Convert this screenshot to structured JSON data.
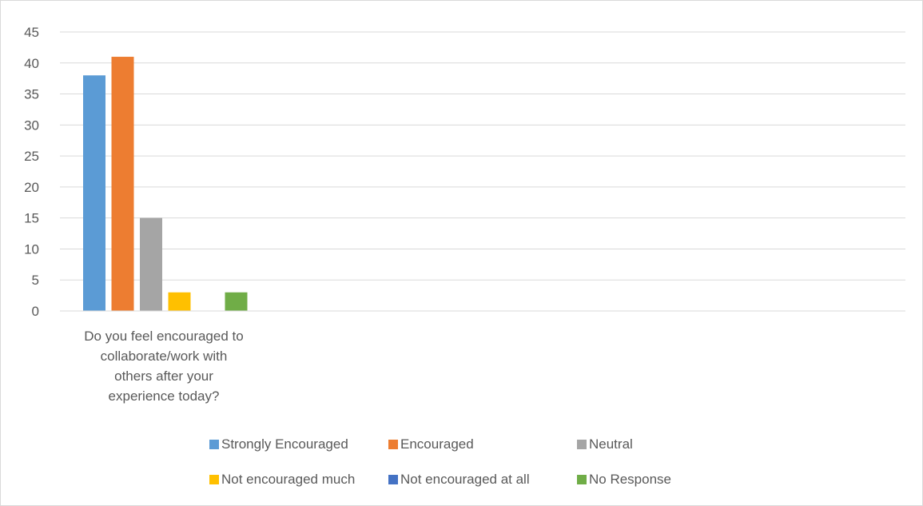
{
  "chart_data": {
    "type": "bar",
    "categories": [
      "Do you feel encouraged to collaborate/work with others after your experience today?"
    ],
    "category_label_lines": [
      "Do you feel encouraged to",
      "collaborate/work with",
      "others after your",
      "experience today?"
    ],
    "series": [
      {
        "name": "Strongly Encouraged",
        "values": [
          38
        ],
        "color": "#5b9bd5"
      },
      {
        "name": "Encouraged",
        "values": [
          41
        ],
        "color": "#ed7d31"
      },
      {
        "name": "Neutral",
        "values": [
          15
        ],
        "color": "#a5a5a5"
      },
      {
        "name": "Not encouraged much",
        "values": [
          3
        ],
        "color": "#ffc000"
      },
      {
        "name": "Not encouraged at all",
        "values": [
          0
        ],
        "color": "#4472c4"
      },
      {
        "name": "No Response",
        "values": [
          3
        ],
        "color": "#70ad47"
      }
    ],
    "ylim": [
      0,
      45
    ],
    "yticks": [
      0,
      5,
      10,
      15,
      20,
      25,
      30,
      35,
      40,
      45
    ],
    "grid": true,
    "legend": "bottom",
    "title": "",
    "xlabel": "",
    "ylabel": ""
  }
}
